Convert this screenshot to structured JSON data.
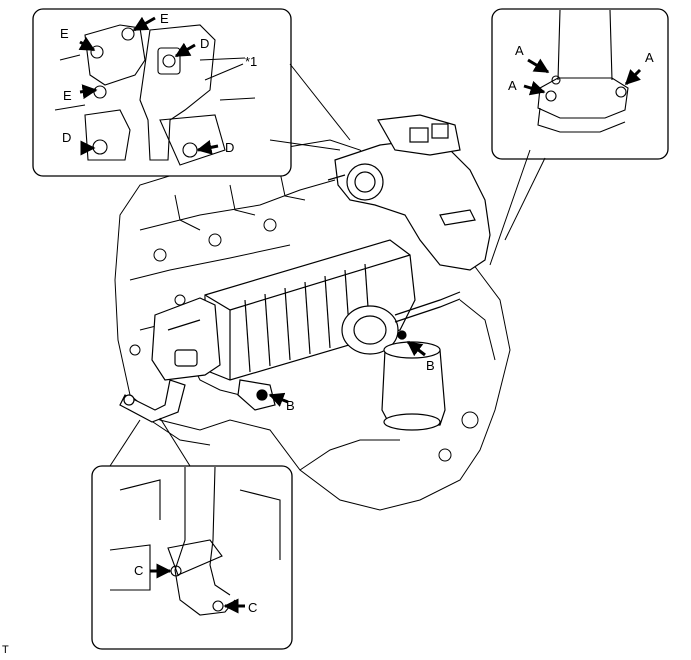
{
  "figure": {
    "callout_ref": "*1",
    "corner_code": "T"
  },
  "labels": {
    "a1": "A",
    "a2": "A",
    "a3": "A",
    "b1": "B",
    "b2": "B",
    "c1": "C",
    "c2": "C",
    "d1": "D",
    "d2": "D",
    "d3": "D",
    "e1": "E",
    "e2": "E",
    "e3": "E"
  },
  "colors": {
    "line": "#000000",
    "background": "#ffffff"
  }
}
